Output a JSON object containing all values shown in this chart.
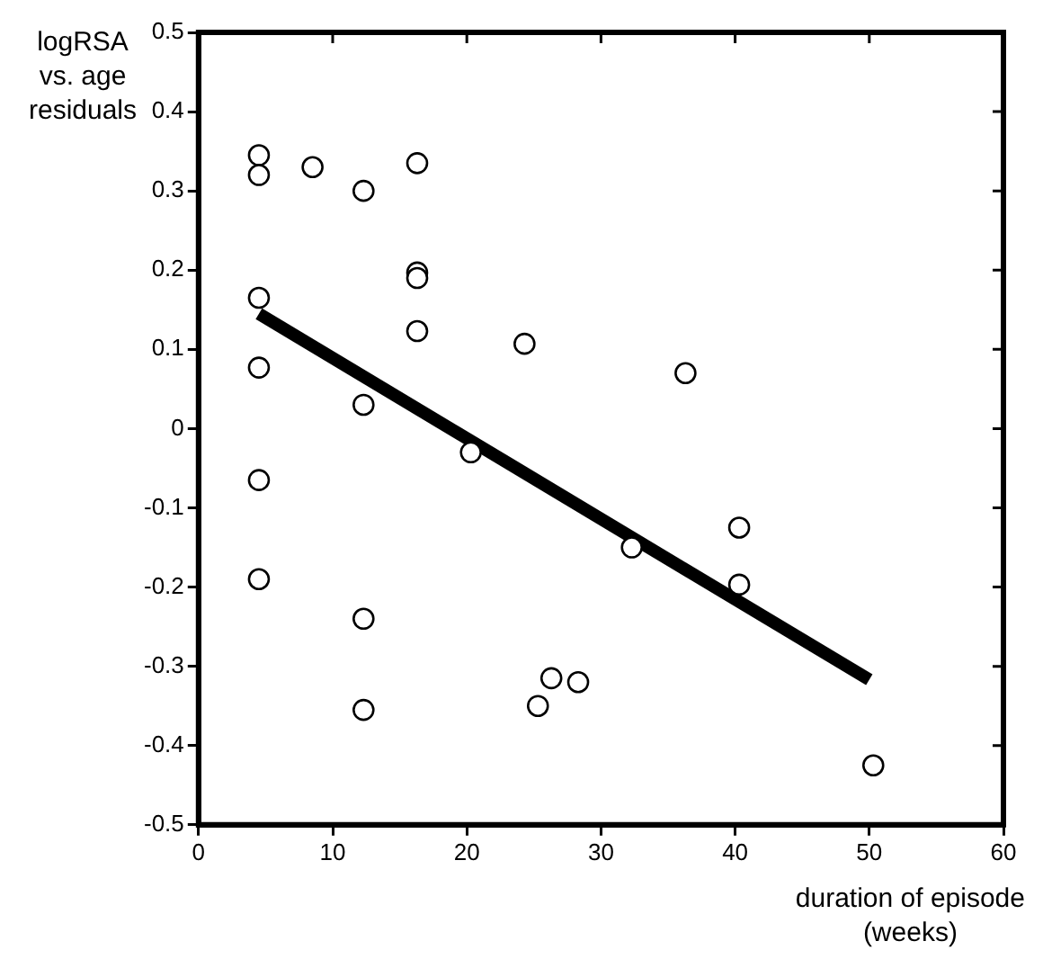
{
  "chart_data": {
    "type": "scatter",
    "xlabel": "duration of episode\n(weeks)",
    "ylabel": "logRSA\nvs. age\nresiduals",
    "xlim": [
      0,
      60
    ],
    "xticks": [
      0,
      10,
      20,
      30,
      40,
      50,
      60
    ],
    "ylim": [
      -0.5,
      0.5
    ],
    "yticks": [
      -0.5,
      -0.4,
      -0.3,
      -0.2,
      -0.1,
      0,
      0.1,
      0.2,
      0.3,
      0.4,
      0.5
    ],
    "grid": false,
    "legend": false,
    "marker": "circle",
    "series": [
      {
        "color": "#000000",
        "x": [
          4.5,
          4.5,
          4.5,
          4.5,
          4.5,
          4.5,
          8.5,
          12.3,
          12.3,
          12.3,
          12.3,
          16.3,
          16.3,
          16.3,
          16.3,
          20.3,
          24.3,
          25.3,
          26.3,
          28.3,
          32.3,
          36.3,
          40.3,
          40.3,
          50.3
        ],
        "values": [
          0.345,
          0.32,
          0.165,
          0.077,
          -0.065,
          -0.19,
          0.33,
          0.3,
          0.03,
          -0.24,
          -0.355,
          0.335,
          0.197,
          0.19,
          0.123,
          -0.03,
          0.107,
          -0.35,
          -0.315,
          -0.32,
          -0.15,
          0.07,
          -0.125,
          -0.197,
          -0.425
        ]
      },
      {
        "type": "line",
        "color": "#000000",
        "marker": "none",
        "line_style": "solid",
        "x": [
          4.5,
          50
        ],
        "values": [
          0.145,
          -0.317
        ]
      }
    ]
  }
}
